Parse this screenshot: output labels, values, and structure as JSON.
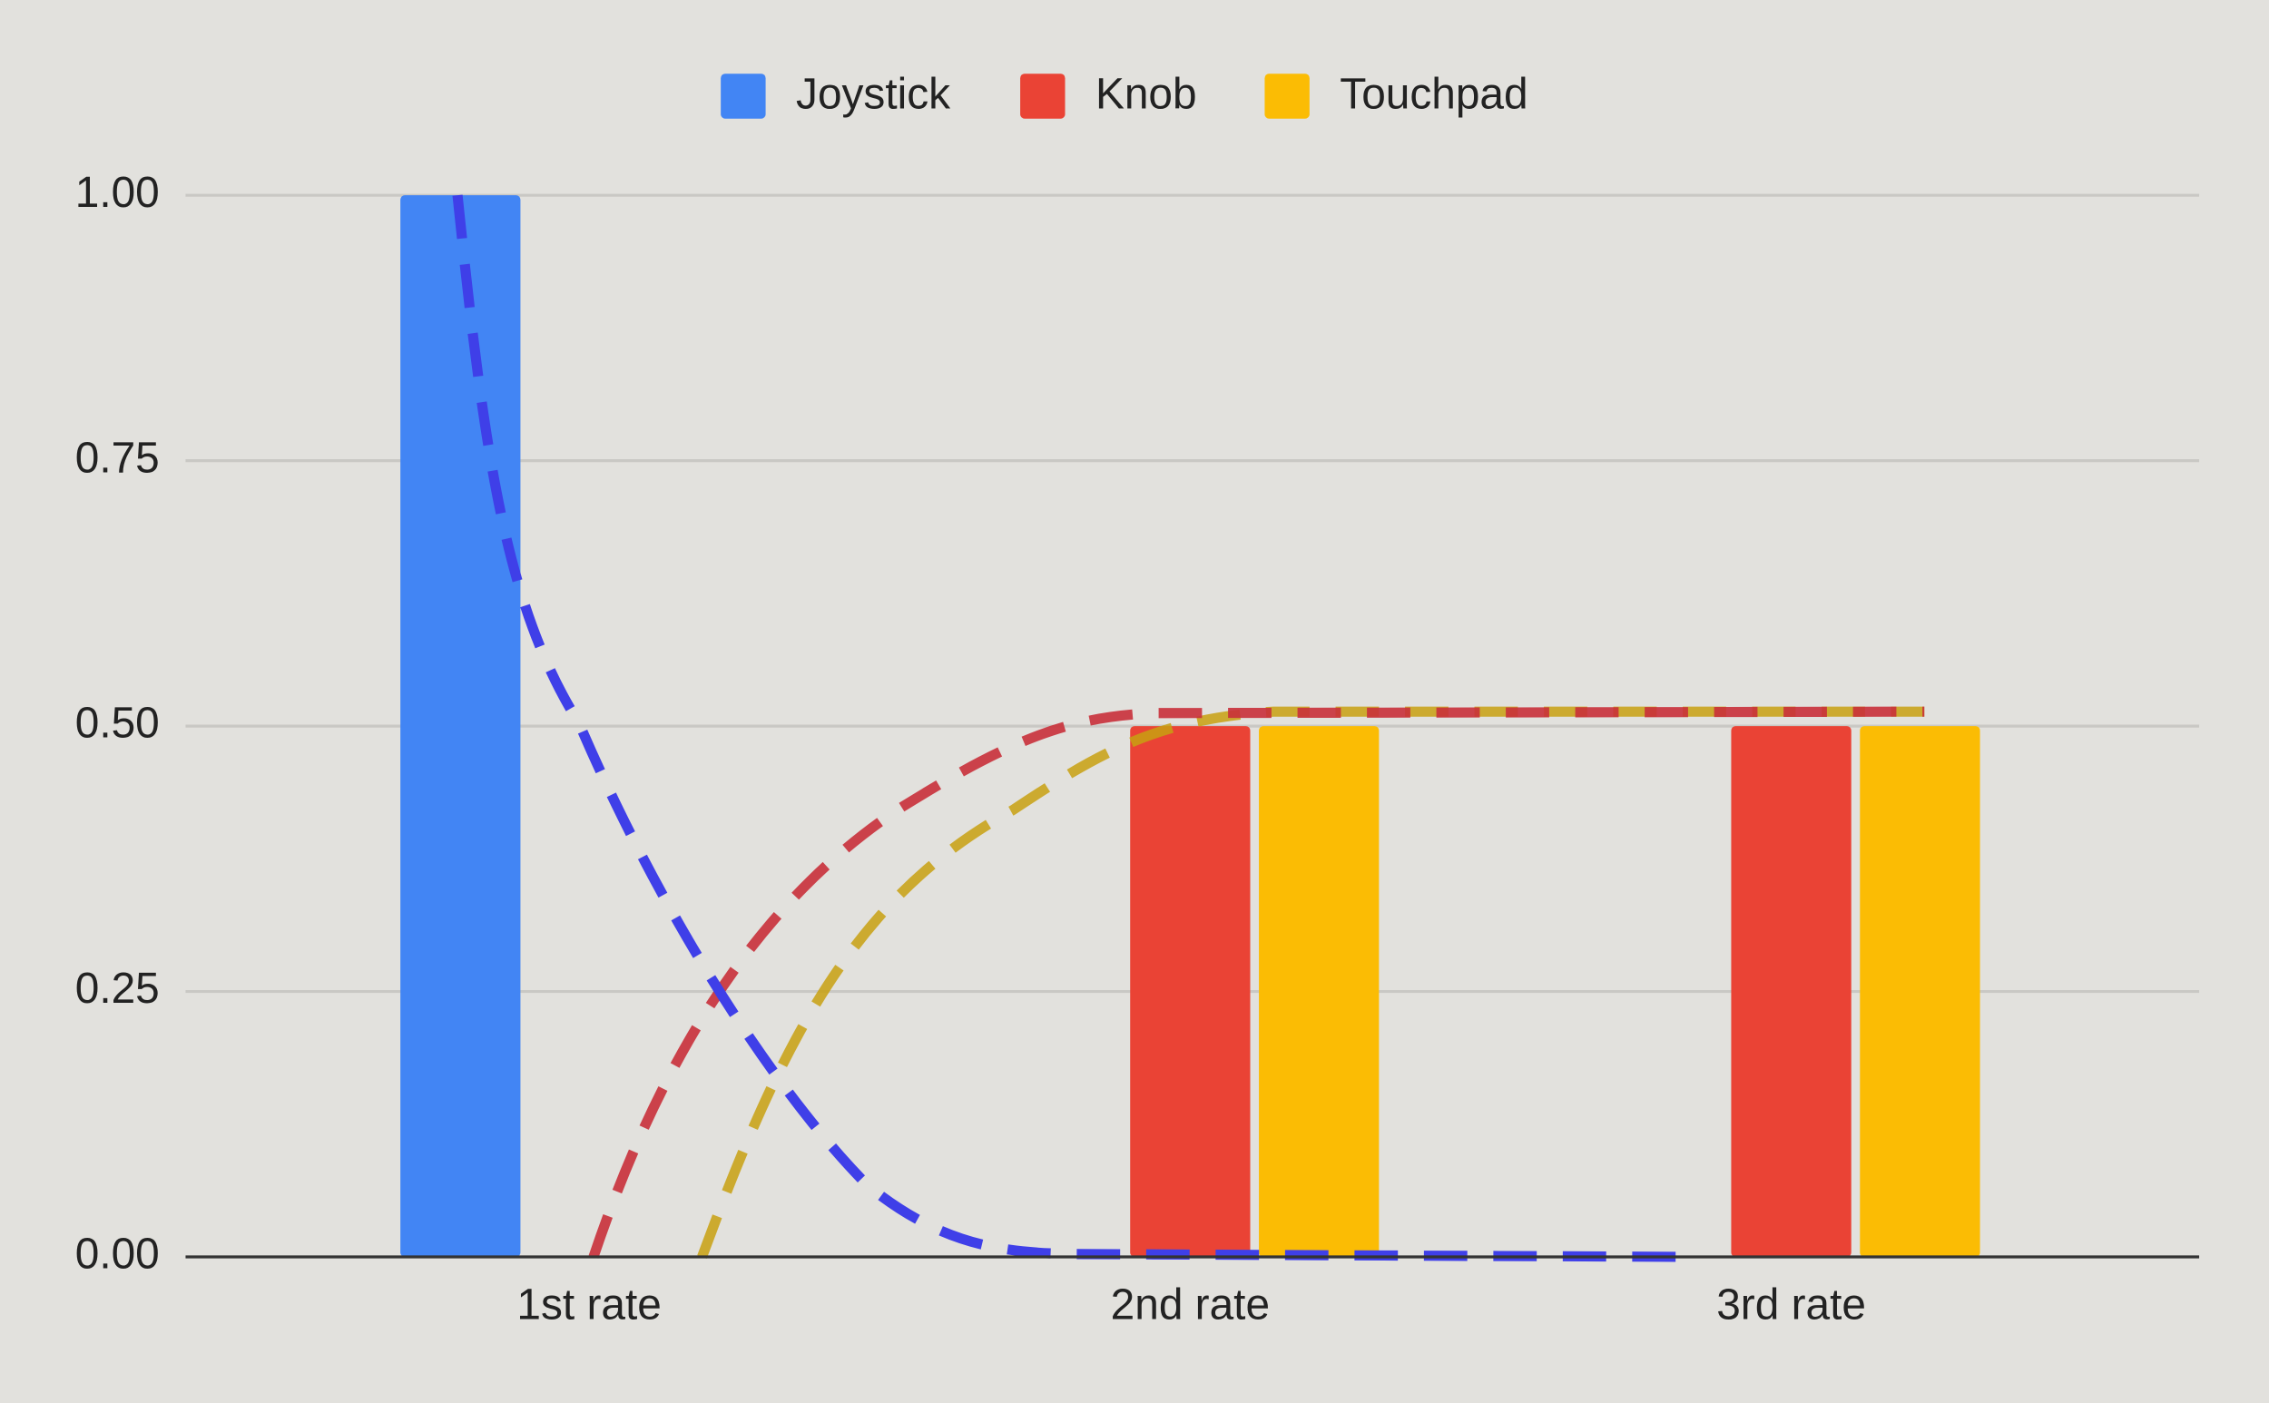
{
  "chart_data": {
    "type": "bar",
    "categories": [
      "1st rate",
      "2nd rate",
      "3rd rate"
    ],
    "series": [
      {
        "name": "Joystick",
        "color": "#4285f4",
        "values": [
          1,
          0,
          0
        ]
      },
      {
        "name": "Knob",
        "color": "#ea4335",
        "values": [
          0,
          0.5,
          0.5
        ]
      },
      {
        "name": "Touchpad",
        "color": "#fbbc04",
        "values": [
          0,
          0.5,
          0.5
        ]
      }
    ],
    "ylim": [
      0,
      1
    ],
    "yticks": [
      {
        "value": 0,
        "label": "0.00"
      },
      {
        "value": 0.25,
        "label": "0.25"
      },
      {
        "value": 0.5,
        "label": "0.50"
      },
      {
        "value": 0.75,
        "label": "0.75"
      },
      {
        "value": 1,
        "label": "1.00"
      }
    ],
    "grid": true,
    "legend": "top"
  }
}
